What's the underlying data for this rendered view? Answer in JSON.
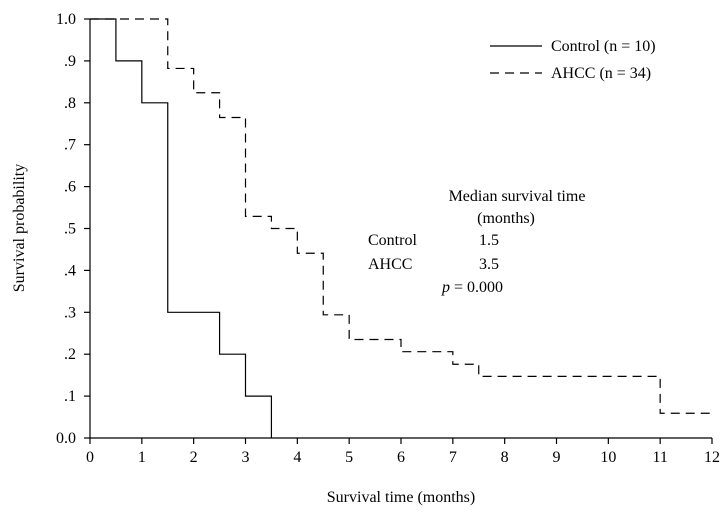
{
  "chart_data": {
    "type": "line",
    "subtype": "kaplan-meier step",
    "xlabel": "Survival time (months)",
    "ylabel": "Survival probability",
    "xlim": [
      0,
      12
    ],
    "ylim": [
      0,
      1
    ],
    "x_ticks": [
      0,
      1,
      2,
      3,
      4,
      5,
      6,
      7,
      8,
      9,
      10,
      11,
      12
    ],
    "y_ticks": [
      0,
      0.1,
      0.2,
      0.3,
      0.4,
      0.5,
      0.6,
      0.7,
      0.8,
      0.9,
      1.0
    ],
    "y_tick_labels": [
      "0.0",
      ".1",
      ".2",
      ".3",
      ".4",
      ".5",
      ".6",
      ".7",
      ".8",
      ".9",
      "1.0"
    ],
    "grid": false,
    "legend_position": "top-right",
    "series": [
      {
        "name": "Control (n = 10)",
        "line_style": "solid",
        "x": [
          0,
          0.5,
          1,
          1.5,
          2.5,
          3,
          3.5
        ],
        "y": [
          1.0,
          0.9,
          0.8,
          0.3,
          0.2,
          0.1,
          0.0
        ]
      },
      {
        "name": "AHCC (n = 34)",
        "line_style": "dashed",
        "x": [
          0,
          1.5,
          2,
          2.5,
          3,
          3.5,
          4,
          4.5,
          5,
          6,
          7,
          7.5,
          11,
          12
        ],
        "y": [
          1.0,
          0.882,
          0.824,
          0.765,
          0.529,
          0.5,
          0.441,
          0.294,
          0.235,
          0.206,
          0.176,
          0.147,
          0.059,
          0.059
        ]
      }
    ],
    "annotation": {
      "title_line1": "Median survival time",
      "title_line2": "(months)",
      "rows": [
        {
          "label": "Control",
          "value": "1.5"
        },
        {
          "label": "AHCC",
          "value": "3.5"
        }
      ],
      "p_symbol": "p",
      "p_rest": " = 0.000"
    }
  }
}
